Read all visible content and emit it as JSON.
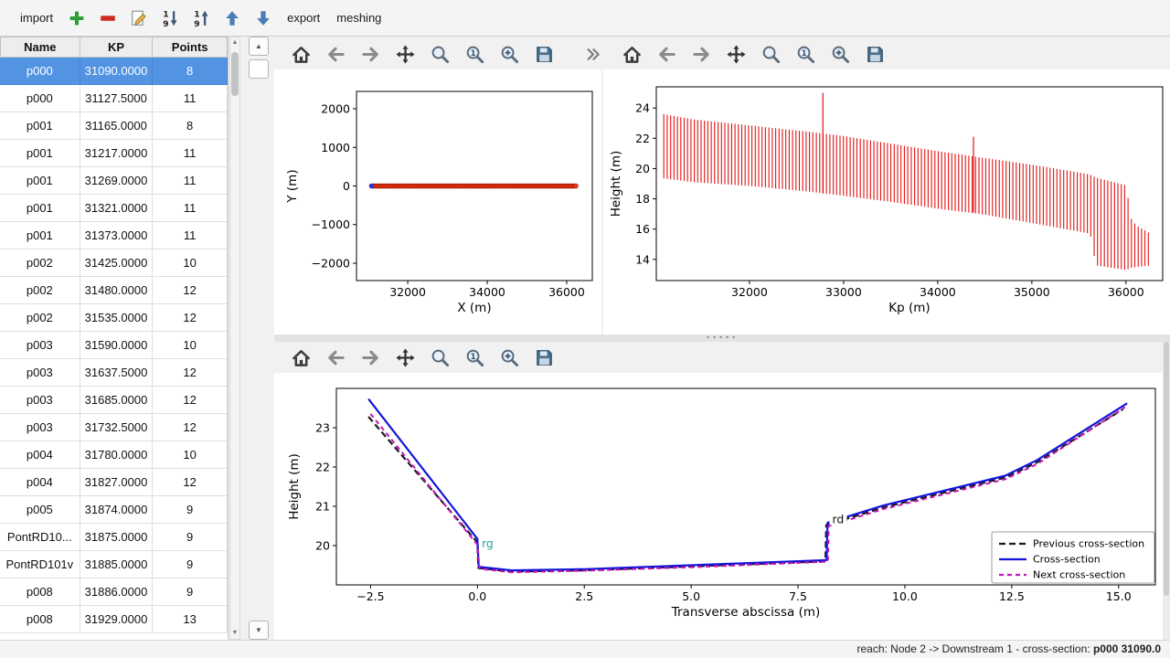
{
  "top_toolbar": {
    "items": [
      {
        "type": "text",
        "label": "import",
        "name": "import-button"
      },
      {
        "type": "icon",
        "icon": "plus",
        "name": "add-cross-section-button"
      },
      {
        "type": "icon",
        "icon": "minus",
        "name": "remove-cross-section-button"
      },
      {
        "type": "icon",
        "icon": "edit",
        "name": "edit-cross-section-button"
      },
      {
        "type": "icon",
        "icon": "sort-desc",
        "name": "sort-descending-button"
      },
      {
        "type": "icon",
        "icon": "sort-asc",
        "name": "sort-ascending-button"
      },
      {
        "type": "icon",
        "icon": "arrow-up",
        "name": "move-up-button"
      },
      {
        "type": "icon",
        "icon": "arrow-down",
        "name": "move-down-button"
      },
      {
        "type": "text",
        "label": "export",
        "name": "export-button"
      },
      {
        "type": "text",
        "label": "meshing",
        "name": "meshing-button"
      }
    ]
  },
  "table": {
    "columns": [
      "Name",
      "KP",
      "Points"
    ],
    "selected_row": 0,
    "rows": [
      [
        "p000",
        "31090.0000",
        "8"
      ],
      [
        "p000",
        "31127.5000",
        "11"
      ],
      [
        "p001",
        "31165.0000",
        "8"
      ],
      [
        "p001",
        "31217.0000",
        "11"
      ],
      [
        "p001",
        "31269.0000",
        "11"
      ],
      [
        "p001",
        "31321.0000",
        "11"
      ],
      [
        "p001",
        "31373.0000",
        "11"
      ],
      [
        "p002",
        "31425.0000",
        "10"
      ],
      [
        "p002",
        "31480.0000",
        "12"
      ],
      [
        "p002",
        "31535.0000",
        "12"
      ],
      [
        "p003",
        "31590.0000",
        "10"
      ],
      [
        "p003",
        "31637.5000",
        "12"
      ],
      [
        "p003",
        "31685.0000",
        "12"
      ],
      [
        "p003",
        "31732.5000",
        "12"
      ],
      [
        "p004",
        "31780.0000",
        "10"
      ],
      [
        "p004",
        "31827.0000",
        "12"
      ],
      [
        "p005",
        "31874.0000",
        "9"
      ],
      [
        "PontRD10...",
        "31875.0000",
        "9"
      ],
      [
        "PontRD101v",
        "31885.0000",
        "9"
      ],
      [
        "p008",
        "31886.0000",
        "9"
      ],
      [
        "p008",
        "31929.0000",
        "13"
      ]
    ]
  },
  "mpl_toolbar": {
    "buttons": [
      "home",
      "back",
      "forward",
      "pan",
      "zoom",
      "zoom-orig",
      "zoom-sel",
      "save"
    ]
  },
  "status_bar": {
    "prefix": "reach: Node 2 -> Downstream 1 - cross-section: ",
    "value": "p000 31090.0"
  },
  "chart_data": [
    {
      "name": "trajectory",
      "type": "scatter",
      "xlabel": "X (m)",
      "ylabel": "Y (m)",
      "xlim": [
        30710,
        36645
      ],
      "ylim": [
        -2450,
        2450
      ],
      "xticks": [
        32000,
        34000,
        36000
      ],
      "xticklabels": [
        "32000",
        "34000",
        "36000"
      ],
      "yticks": [
        -2000,
        -1000,
        0,
        1000,
        2000
      ],
      "yticklabels": [
        "−2000",
        "−1000",
        "0",
        "1000",
        "2000"
      ],
      "series": [
        {
          "name": "cross-section-positions",
          "type": "scatter-run",
          "x_start": 31090,
          "x_end": 36230,
          "count": 150,
          "y": 0,
          "r": 2.4,
          "color": "#f23b1e",
          "edge": "#a81800"
        },
        {
          "name": "first-point",
          "type": "scatter",
          "points": [
            [
              31090,
              0
            ]
          ],
          "r": 2.6,
          "color": "#2431d8"
        }
      ]
    },
    {
      "name": "longitudinal-extents",
      "type": "vlines",
      "xlabel": "Kp (m)",
      "ylabel": "Height (m)",
      "xlim": [
        31010,
        36390
      ],
      "ylim": [
        12.6,
        25.4
      ],
      "xticks": [
        32000,
        33000,
        34000,
        35000,
        36000
      ],
      "xticklabels": [
        "32000",
        "33000",
        "34000",
        "35000",
        "36000"
      ],
      "yticks": [
        14,
        16,
        18,
        20,
        22,
        24
      ],
      "yticklabels": [
        "14",
        "16",
        "18",
        "20",
        "22",
        "24"
      ],
      "color": "#e11212",
      "step": 36,
      "control": {
        "kp": [
          31090,
          31400,
          32000,
          32600,
          33000,
          33500,
          34000,
          34500,
          35000,
          35400,
          35620,
          35680,
          36000,
          36060,
          36120,
          36260
        ],
        "top": [
          23.6,
          23.25,
          22.85,
          22.45,
          22.15,
          21.65,
          21.15,
          20.7,
          20.25,
          19.85,
          19.6,
          19.4,
          18.9,
          16.6,
          16.2,
          15.7
        ],
        "bottom": [
          19.35,
          19.1,
          18.85,
          18.5,
          18.2,
          17.8,
          17.35,
          16.95,
          16.4,
          15.95,
          15.7,
          13.6,
          13.3,
          13.45,
          13.5,
          13.6
        ]
      },
      "spikes": [
        {
          "kp": 32780,
          "top": 25.0,
          "bottom": 18.35
        },
        {
          "kp": 34380,
          "top": 22.1,
          "bottom": 17.1
        }
      ]
    },
    {
      "name": "cross-section-profile",
      "type": "line",
      "xlabel": "Transverse abscissa (m)",
      "ylabel": "Height (m)",
      "xlim": [
        -3.3,
        15.86
      ],
      "ylim": [
        19.0,
        24.0
      ],
      "xticks": [
        -2.5,
        0.0,
        2.5,
        5.0,
        7.5,
        10.0,
        12.5,
        15.0
      ],
      "xticklabels": [
        "−2.5",
        "0.0",
        "2.5",
        "5.0",
        "7.5",
        "10.0",
        "12.5",
        "15.0"
      ],
      "yticks": [
        20,
        21,
        22,
        23
      ],
      "yticklabels": [
        "20",
        "21",
        "22",
        "23"
      ],
      "series": [
        {
          "name": "Previous cross-section",
          "color": "#1a1a1a",
          "dash": "7,4",
          "width": 2.2,
          "points": [
            [
              -2.55,
              23.28
            ],
            [
              0.0,
              20.08
            ],
            [
              0.02,
              19.43
            ],
            [
              0.8,
              19.34
            ],
            [
              2.5,
              19.37
            ],
            [
              5.0,
              19.47
            ],
            [
              8.14,
              19.6
            ],
            [
              8.16,
              20.52
            ],
            [
              9.5,
              20.97
            ],
            [
              12.35,
              21.73
            ],
            [
              13.1,
              22.12
            ],
            [
              15.1,
              23.47
            ]
          ]
        },
        {
          "name": "Cross-section",
          "color": "#1414dc",
          "dash": null,
          "width": 2.2,
          "points": [
            [
              -2.55,
              23.73
            ],
            [
              0.0,
              20.17
            ],
            [
              0.03,
              19.46
            ],
            [
              0.8,
              19.37
            ],
            [
              2.5,
              19.4
            ],
            [
              5.0,
              19.5
            ],
            [
              8.17,
              19.63
            ],
            [
              8.19,
              20.58
            ],
            [
              9.5,
              21.02
            ],
            [
              12.35,
              21.78
            ],
            [
              13.1,
              22.18
            ],
            [
              15.2,
              23.62
            ]
          ]
        },
        {
          "name": "Next cross-section",
          "color": "#c913b8",
          "dash": "5,4",
          "width": 2,
          "points": [
            [
              -2.5,
              23.35
            ],
            [
              0.0,
              20.02
            ],
            [
              0.05,
              19.41
            ],
            [
              0.8,
              19.32
            ],
            [
              2.5,
              19.36
            ],
            [
              5.0,
              19.45
            ],
            [
              8.2,
              19.59
            ],
            [
              8.22,
              20.5
            ],
            [
              9.5,
              20.93
            ],
            [
              12.35,
              21.69
            ],
            [
              13.1,
              22.08
            ],
            [
              15.15,
              23.52
            ]
          ]
        }
      ],
      "annotations": [
        {
          "text": "rg",
          "x": 0.1,
          "y": 20.0,
          "color": "#1ba8a8",
          "bg": null
        },
        {
          "text": "rd",
          "x": 8.3,
          "y": 20.62,
          "color": "#111111",
          "bg": "#ffffff"
        }
      ],
      "legend": {
        "entries": [
          {
            "label": "Previous cross-section",
            "color": "#1a1a1a",
            "dash": "7,4"
          },
          {
            "label": "Cross-section",
            "color": "#1414dc",
            "dash": null
          },
          {
            "label": "Next cross-section",
            "color": "#c913b8",
            "dash": "5,4"
          }
        ]
      }
    }
  ]
}
